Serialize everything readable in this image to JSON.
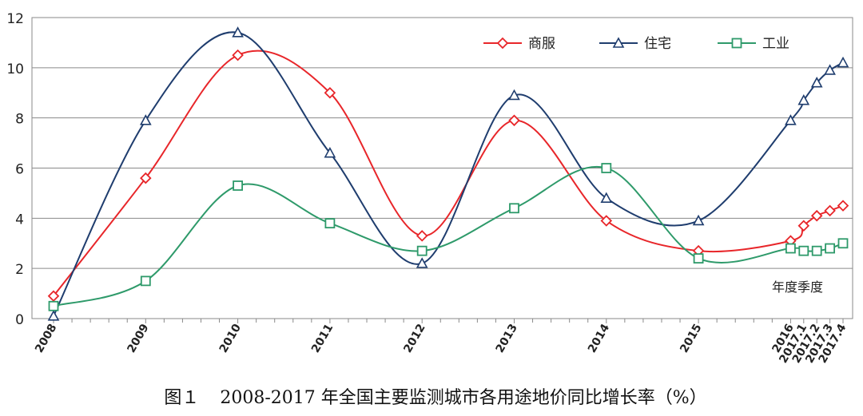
{
  "chart_data": {
    "type": "line",
    "title": "",
    "xlabel": "年度季度",
    "ylabel": "",
    "ylim": [
      0,
      12
    ],
    "yticks": [
      "0",
      "2",
      "4",
      "6",
      "8",
      "10",
      "12"
    ],
    "categories": [
      "2008",
      "2009",
      "2010",
      "2011",
      "2012",
      "2013",
      "2014",
      "2015",
      "2016",
      "2017.1",
      "2017.2",
      "2017.3",
      "2017.4"
    ],
    "grid": true,
    "legend_position": "top-right",
    "series": [
      {
        "name": "商服",
        "color": "#e8262a",
        "marker": "diamond",
        "values": [
          0.9,
          5.6,
          10.5,
          9.0,
          3.3,
          7.9,
          3.9,
          2.7,
          3.1,
          3.7,
          4.1,
          4.3,
          4.5
        ]
      },
      {
        "name": "住宅",
        "color": "#1f3d6e",
        "marker": "triangle",
        "values": [
          0.1,
          7.9,
          11.4,
          6.6,
          2.2,
          8.9,
          4.8,
          3.9,
          7.9,
          8.7,
          9.4,
          9.9,
          10.2
        ]
      },
      {
        "name": "工业",
        "color": "#2e9a6a",
        "marker": "square",
        "values": [
          0.5,
          1.5,
          5.3,
          3.8,
          2.7,
          4.4,
          6.0,
          2.4,
          2.8,
          2.7,
          2.7,
          2.8,
          3.0
        ]
      }
    ]
  },
  "caption": {
    "figure_label": "图１",
    "text": "2008-2017 年全国主要监测城市各用途地价同比增长率（%）"
  }
}
